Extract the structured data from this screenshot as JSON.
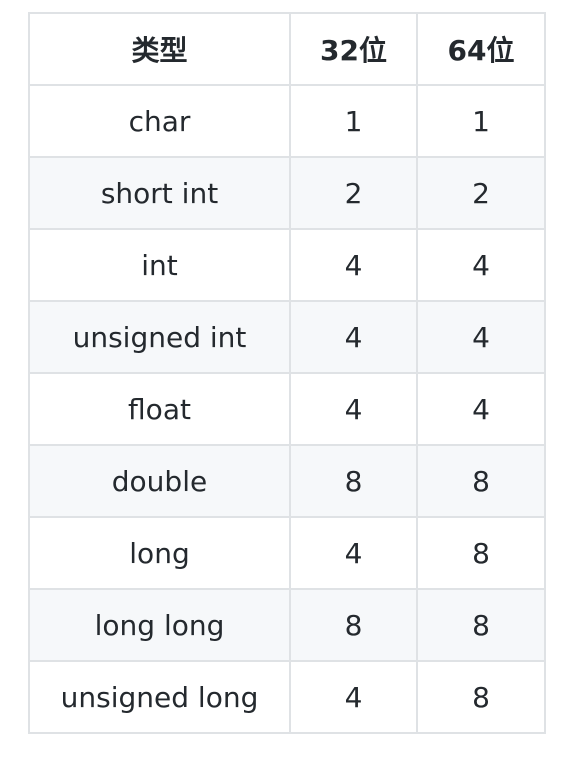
{
  "table": {
    "headers": [
      "类型",
      "32位",
      "64位"
    ],
    "rows": [
      [
        "char",
        "1",
        "1"
      ],
      [
        "short int",
        "2",
        "2"
      ],
      [
        "int",
        "4",
        "4"
      ],
      [
        "unsigned int",
        "4",
        "4"
      ],
      [
        "float",
        "4",
        "4"
      ],
      [
        "double",
        "8",
        "8"
      ],
      [
        "long",
        "4",
        "8"
      ],
      [
        "long long",
        "8",
        "8"
      ],
      [
        "unsigned long",
        "4",
        "8"
      ]
    ]
  },
  "colors": {
    "border": "#dfe2e5",
    "stripe": "#f6f8fa",
    "text": "#24292e"
  }
}
